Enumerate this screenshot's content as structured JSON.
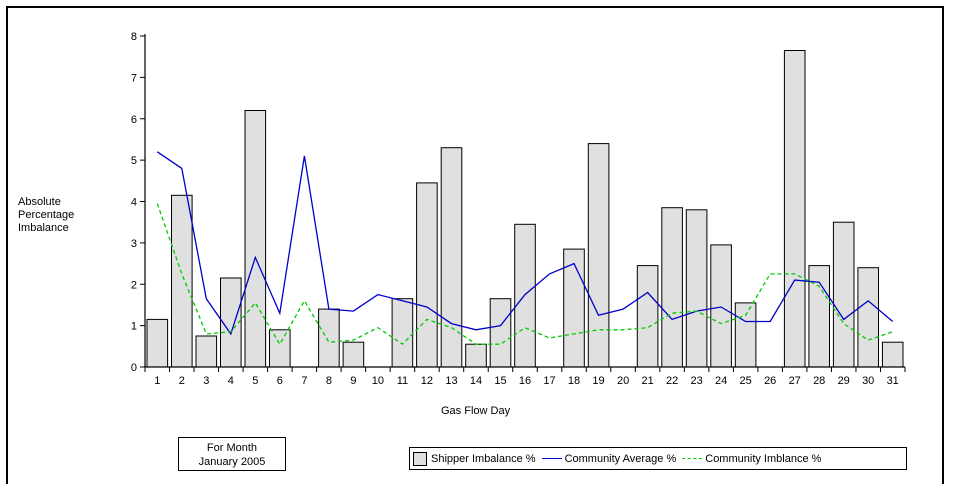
{
  "chart_data": {
    "type": "bar",
    "xlabel": "Gas Flow Day",
    "ylabel_lines": [
      "Absolute",
      "Percentage",
      "Imbalance"
    ],
    "ylim": [
      0,
      8
    ],
    "yticks": [
      0,
      1,
      2,
      3,
      4,
      5,
      6,
      7,
      8
    ],
    "categories": [
      "1",
      "2",
      "3",
      "4",
      "5",
      "6",
      "7",
      "8",
      "9",
      "10",
      "11",
      "12",
      "13",
      "14",
      "15",
      "16",
      "17",
      "18",
      "19",
      "20",
      "21",
      "22",
      "23",
      "24",
      "25",
      "26",
      "27",
      "28",
      "29",
      "30",
      "31"
    ],
    "series": [
      {
        "name": "Shipper Imbalance %",
        "kind": "bar",
        "color": "#e0e0e0",
        "values": [
          1.15,
          4.15,
          0.75,
          2.15,
          6.2,
          0.9,
          null,
          1.4,
          0.6,
          null,
          1.65,
          4.45,
          5.3,
          0.55,
          1.65,
          3.45,
          null,
          2.85,
          5.4,
          null,
          2.45,
          3.85,
          3.8,
          2.95,
          1.55,
          null,
          7.65,
          2.45,
          3.5,
          2.4,
          0.6
        ]
      },
      {
        "name": "Community Average %",
        "kind": "line",
        "color": "#0000cc",
        "dash": "solid",
        "values": [
          5.2,
          4.8,
          1.65,
          0.8,
          2.65,
          1.3,
          5.1,
          1.4,
          1.35,
          1.75,
          1.6,
          1.45,
          1.05,
          0.9,
          1.0,
          1.75,
          2.25,
          2.5,
          1.25,
          1.4,
          1.8,
          1.15,
          1.35,
          1.45,
          1.1,
          1.1,
          2.1,
          2.05,
          1.15,
          1.6,
          1.1
        ]
      },
      {
        "name": "Community Imblance %",
        "kind": "line",
        "color": "#00cc00",
        "dash": "dashed",
        "values": [
          3.95,
          2.25,
          0.8,
          0.85,
          1.55,
          0.55,
          1.6,
          0.6,
          0.65,
          0.95,
          0.55,
          1.15,
          0.95,
          0.55,
          0.55,
          0.95,
          0.7,
          0.8,
          0.9,
          0.9,
          0.95,
          1.3,
          1.35,
          1.05,
          1.25,
          2.25,
          2.25,
          1.95,
          1.05,
          0.65,
          0.85
        ]
      }
    ],
    "legend_placement": "bottom-right",
    "grid": false
  },
  "month_box": {
    "line1": "For Month",
    "line2": "January 2005"
  },
  "colors": {
    "bar_fill": "#e0e0e0",
    "avg_line": "#0000cc",
    "imb_line": "#00cc00"
  }
}
